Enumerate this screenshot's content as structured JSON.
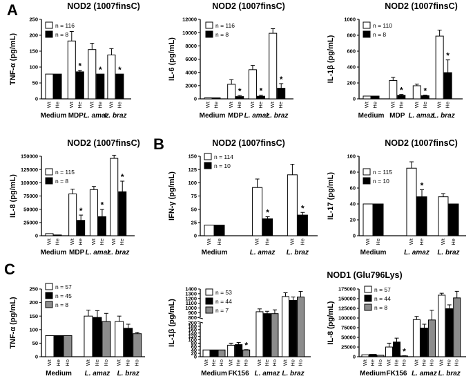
{
  "panel_labels": [
    "A",
    "B",
    "C"
  ],
  "colors": {
    "Wt": "#ffffff",
    "He": "#000000",
    "Ho": "#8c8c8c"
  },
  "chart_data": [
    {
      "id": "a1",
      "type": "bar",
      "title": "NOD2 (1007finsC)",
      "ylabel": "TNF-α (pg/mL)",
      "ylim": [
        0,
        250
      ],
      "yticks": [
        0,
        50,
        100,
        150,
        200,
        250
      ],
      "legend": [
        "n = 116",
        "n = 8"
      ],
      "genotypes": [
        "Wt",
        "He"
      ],
      "groups": [
        {
          "name": "Medium",
          "italic": false,
          "values": [
            78,
            78
          ],
          "errors": [
            0,
            0
          ],
          "sig": [
            false,
            false
          ]
        },
        {
          "name": "MDP",
          "italic": false,
          "values": [
            182,
            85
          ],
          "errors": [
            30,
            5
          ],
          "sig": [
            false,
            true
          ]
        },
        {
          "name": "L. amaz",
          "italic": true,
          "values": [
            155,
            78
          ],
          "errors": [
            20,
            0
          ],
          "sig": [
            false,
            true
          ]
        },
        {
          "name": "L. braz",
          "italic": true,
          "values": [
            138,
            78
          ],
          "errors": [
            20,
            0
          ],
          "sig": [
            false,
            true
          ]
        }
      ]
    },
    {
      "id": "a2",
      "type": "bar",
      "title": "NOD2 (1007finsC)",
      "ylabel": "IL-6 (pg/mL)",
      "ylim": [
        0,
        12000
      ],
      "yticks": [
        0,
        2000,
        4000,
        6000,
        8000,
        10000,
        12000
      ],
      "legend": [
        "n = 116",
        "n = 8"
      ],
      "genotypes": [
        "Wt",
        "He"
      ],
      "groups": [
        {
          "name": "Medium",
          "italic": false,
          "values": [
            150,
            150
          ],
          "errors": [
            0,
            0
          ],
          "sig": [
            false,
            false
          ]
        },
        {
          "name": "MDP",
          "italic": false,
          "values": [
            2200,
            350
          ],
          "errors": [
            700,
            150
          ],
          "sig": [
            false,
            true
          ]
        },
        {
          "name": "L. amaz",
          "italic": true,
          "values": [
            4400,
            400
          ],
          "errors": [
            650,
            150
          ],
          "sig": [
            false,
            true
          ]
        },
        {
          "name": "L. braz",
          "italic": true,
          "values": [
            9900,
            1600
          ],
          "errors": [
            700,
            700
          ],
          "sig": [
            false,
            true
          ]
        }
      ]
    },
    {
      "id": "a3",
      "type": "bar",
      "title": "NOD2 (1007finsC)",
      "ylabel": "IL-1β (pg/mL)",
      "ylim": [
        0,
        1000
      ],
      "yticks": [
        0,
        200,
        400,
        600,
        800,
        1000
      ],
      "legend": [
        "n = 110",
        "n = 8"
      ],
      "genotypes": [
        "Wt",
        "He"
      ],
      "groups": [
        {
          "name": "Medium",
          "italic": false,
          "values": [
            35,
            35
          ],
          "errors": [
            0,
            0
          ],
          "sig": [
            false,
            false
          ]
        },
        {
          "name": "MDP",
          "italic": false,
          "values": [
            230,
            45
          ],
          "errors": [
            40,
            10
          ],
          "sig": [
            false,
            true
          ]
        },
        {
          "name": "L. amaz",
          "italic": true,
          "values": [
            165,
            40
          ],
          "errors": [
            20,
            8
          ],
          "sig": [
            false,
            true
          ]
        },
        {
          "name": "L. braz",
          "italic": true,
          "values": [
            790,
            330
          ],
          "errors": [
            75,
            160
          ],
          "sig": [
            false,
            true
          ]
        }
      ]
    },
    {
      "id": "a4",
      "type": "bar",
      "title": "NOD2 (1007finsC)",
      "ylabel": "IL-8 (pg/mL)",
      "ylim": [
        0,
        150000
      ],
      "yticks": [
        0,
        25000,
        50000,
        75000,
        100000,
        125000,
        150000
      ],
      "legend": [
        "n = 115",
        "n = 8"
      ],
      "genotypes": [
        "Wt",
        "He"
      ],
      "groups": [
        {
          "name": "Medium",
          "italic": false,
          "values": [
            4000,
            1500
          ],
          "errors": [
            0,
            0
          ],
          "sig": [
            false,
            false
          ]
        },
        {
          "name": "MDP",
          "italic": false,
          "values": [
            79000,
            29000
          ],
          "errors": [
            9000,
            10000
          ],
          "sig": [
            false,
            true
          ]
        },
        {
          "name": "L. amaz",
          "italic": true,
          "values": [
            87000,
            36000
          ],
          "errors": [
            6000,
            14000
          ],
          "sig": [
            false,
            true
          ]
        },
        {
          "name": "L. braz",
          "italic": true,
          "values": [
            146000,
            83000
          ],
          "errors": [
            6000,
            20000
          ],
          "sig": [
            false,
            true
          ]
        }
      ]
    },
    {
      "id": "b1",
      "type": "bar",
      "title": "NOD2 (1007finsC)",
      "ylabel": "IFN-γ (pg/mL)",
      "ylim": [
        0,
        150
      ],
      "yticks": [
        0,
        25,
        50,
        75,
        100,
        125,
        150
      ],
      "legend": [
        "n = 114",
        "n = 10"
      ],
      "genotypes": [
        "Wt",
        "He"
      ],
      "groups": [
        {
          "name": "Medium",
          "italic": false,
          "values": [
            20,
            20
          ],
          "errors": [
            0,
            0
          ],
          "sig": [
            false,
            false
          ]
        },
        {
          "name": "L. amaz",
          "italic": true,
          "values": [
            91,
            32
          ],
          "errors": [
            16,
            4
          ],
          "sig": [
            false,
            true
          ]
        },
        {
          "name": "L. braz",
          "italic": true,
          "values": [
            115,
            39
          ],
          "errors": [
            20,
            5
          ],
          "sig": [
            false,
            true
          ]
        }
      ]
    },
    {
      "id": "b2",
      "type": "bar",
      "title": "NOD2 (1007finsC)",
      "ylabel": "IL-17 (pg/mL)",
      "ylim": [
        0,
        100
      ],
      "yticks": [
        0,
        20,
        40,
        60,
        80,
        100
      ],
      "legend": [
        "n = 115",
        "n = 10"
      ],
      "genotypes": [
        "Wt",
        "He"
      ],
      "groups": [
        {
          "name": "Medium",
          "italic": false,
          "values": [
            40,
            40
          ],
          "errors": [
            0,
            0
          ],
          "sig": [
            false,
            false
          ]
        },
        {
          "name": "L. amaz",
          "italic": true,
          "values": [
            85,
            49
          ],
          "errors": [
            8,
            9
          ],
          "sig": [
            false,
            true
          ]
        },
        {
          "name": "L. braz",
          "italic": true,
          "values": [
            49,
            40
          ],
          "errors": [
            4,
            0
          ],
          "sig": [
            false,
            false
          ]
        }
      ]
    },
    {
      "id": "c1",
      "type": "bar",
      "title": "",
      "ylabel": "TNF-α (pg/mL)",
      "ylim": [
        0,
        250
      ],
      "yticks": [
        0,
        50,
        100,
        150,
        200,
        250
      ],
      "legend": [
        "n = 57",
        "n = 45",
        "n = 8"
      ],
      "genotypes": [
        "Wt",
        "He",
        "Ho"
      ],
      "groups": [
        {
          "name": "Medium",
          "italic": false,
          "values": [
            78,
            78,
            78
          ],
          "errors": [
            0,
            0,
            0
          ],
          "sig": [
            false,
            false,
            false
          ]
        },
        {
          "name": "L. amaz",
          "italic": true,
          "values": [
            150,
            145,
            130
          ],
          "errors": [
            22,
            25,
            30
          ],
          "sig": [
            false,
            false,
            false
          ]
        },
        {
          "name": "L. braz",
          "italic": true,
          "values": [
            130,
            105,
            85
          ],
          "errors": [
            20,
            15,
            5
          ],
          "sig": [
            false,
            false,
            false
          ]
        }
      ]
    },
    {
      "id": "c2",
      "type": "bar",
      "title": "NOD1 (Glu796Lys)",
      "ylabel": "IL-1β (pg/mL)",
      "ylim": [
        0,
        1400
      ],
      "axis_break": [
        200,
        800
      ],
      "yticks": [
        0,
        20,
        40,
        60,
        80,
        100,
        120,
        140,
        160,
        180,
        200,
        800,
        900,
        1000,
        1100,
        1200,
        1300,
        1400
      ],
      "legend": [
        "n = 53",
        "n = 44",
        "n = 7"
      ],
      "genotypes": [
        "Wt",
        "He",
        "Ho"
      ],
      "groups": [
        {
          "name": "Medium",
          "italic": false,
          "values": [
            40,
            40,
            40
          ],
          "errors": [
            0,
            0,
            0
          ],
          "sig": [
            false,
            false,
            false
          ]
        },
        {
          "name": "FK156",
          "italic": false,
          "values": [
            68,
            72,
            40
          ],
          "errors": [
            12,
            12,
            2
          ],
          "sig": [
            false,
            false,
            true
          ]
        },
        {
          "name": "L. amaz",
          "italic": true,
          "values": [
            920,
            880,
            880
          ],
          "errors": [
            60,
            50,
            80
          ],
          "sig": [
            false,
            false,
            false
          ]
        },
        {
          "name": "L. braz",
          "italic": true,
          "values": [
            1240,
            1160,
            1230
          ],
          "errors": [
            80,
            70,
            120
          ],
          "sig": [
            false,
            false,
            false
          ]
        }
      ]
    },
    {
      "id": "c3",
      "type": "bar",
      "title": "NOD1 (Glu796Lys)",
      "ylabel": "IL-8 (pg/mL)",
      "ylim": [
        0,
        175000
      ],
      "yticks": [
        0,
        25000,
        50000,
        75000,
        100000,
        125000,
        150000,
        175000
      ],
      "legend": [
        "n = 57",
        "n = 44",
        "n = 8"
      ],
      "genotypes": [
        "Wt",
        "He",
        "Ho"
      ],
      "groups": [
        {
          "name": "Medium",
          "italic": false,
          "values": [
            5000,
            6000,
            4000
          ],
          "errors": [
            0,
            0,
            0
          ],
          "sig": [
            false,
            false,
            false
          ]
        },
        {
          "name": "FK156",
          "italic": false,
          "values": [
            25000,
            38000,
            2000
          ],
          "errors": [
            10000,
            10000,
            500
          ],
          "sig": [
            false,
            false,
            true
          ]
        },
        {
          "name": "L. amaz",
          "italic": true,
          "values": [
            96000,
            74000,
            95000
          ],
          "errors": [
            8000,
            10000,
            25000
          ],
          "sig": [
            false,
            false,
            false
          ]
        },
        {
          "name": "L. braz",
          "italic": true,
          "values": [
            159000,
            124000,
            152000
          ],
          "errors": [
            5000,
            10000,
            17000
          ],
          "sig": [
            false,
            false,
            false
          ]
        }
      ]
    }
  ]
}
